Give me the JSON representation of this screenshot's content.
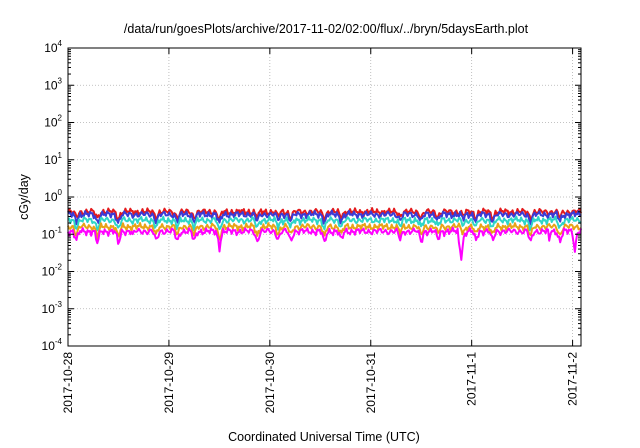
{
  "chart_data": {
    "type": "line",
    "title": "/data/run/goesPlots/archive/2017-11-02/02:00/flux/../bryn/5daysEarth.plot",
    "xlabel": "Coordinated Universal Time (UTC)",
    "ylabel": "cGy/day",
    "yscale": "log",
    "ylim": [
      0.0001,
      10000
    ],
    "y_ticks": [
      {
        "base": "10",
        "exp": "4"
      },
      {
        "base": "10",
        "exp": "3"
      },
      {
        "base": "10",
        "exp": "2"
      },
      {
        "base": "10",
        "exp": "1"
      },
      {
        "base": "10",
        "exp": "0"
      },
      {
        "base": "10",
        "exp": "-1"
      },
      {
        "base": "10",
        "exp": "-2"
      },
      {
        "base": "10",
        "exp": "-3"
      },
      {
        "base": "10",
        "exp": "-4"
      }
    ],
    "xlim": [
      "2017-10-28",
      "2017-11-02 02:00"
    ],
    "x_ticks": [
      "2017-10-28",
      "2017-10-29",
      "2017-10-30",
      "2017-10-31",
      "2017-11-1",
      "2017-11-2"
    ],
    "grid": true,
    "series": [
      {
        "color": "#e41a1c",
        "level": 0.4
      },
      {
        "color": "#3b3bd6",
        "level": 0.34
      },
      {
        "color": "#2ed6c8",
        "level": 0.24
      },
      {
        "color": "#e8a318",
        "level": 0.16
      },
      {
        "color": "#ff00ff",
        "level": 0.12
      }
    ],
    "dips": [
      {
        "date": "2017-10-28 02:00",
        "depth": 0.45
      },
      {
        "date": "2017-10-28 07:00",
        "depth": 0.55
      },
      {
        "date": "2017-10-28 12:00",
        "depth": 0.6
      },
      {
        "date": "2017-10-28 21:00",
        "depth": 0.5
      },
      {
        "date": "2017-10-29 02:00",
        "depth": 0.5
      },
      {
        "date": "2017-10-29 06:00",
        "depth": 0.5
      },
      {
        "date": "2017-10-29 12:00",
        "depth": 0.65
      },
      {
        "date": "2017-10-29 21:00",
        "depth": 0.5
      },
      {
        "date": "2017-10-30 02:00",
        "depth": 0.4
      },
      {
        "date": "2017-10-30 05:00",
        "depth": 0.5
      },
      {
        "date": "2017-10-30 13:00",
        "depth": 0.55
      },
      {
        "date": "2017-10-30 17:00",
        "depth": 0.45
      },
      {
        "date": "2017-10-31 07:00",
        "depth": 0.4
      },
      {
        "date": "2017-10-31 12:00",
        "depth": 0.5
      },
      {
        "date": "2017-10-31 16:00",
        "depth": 0.4
      },
      {
        "date": "2017-10-31 22:00",
        "depth": 0.35
      },
      {
        "date": "2017-11-01 01:00",
        "depth": 0.45
      },
      {
        "date": "2017-11-01 05:00",
        "depth": 0.5
      },
      {
        "date": "2017-11-01 14:00",
        "depth": 0.55
      },
      {
        "date": "2017-11-01 21:00",
        "depth": 0.5
      }
    ],
    "spikes": [
      {
        "date": "2017-10-31 21:30",
        "value": 0.018
      },
      {
        "date": "2017-11-02 00:30",
        "value": 0.028
      },
      {
        "date": "2017-11-01 18:30",
        "value": 0.055
      },
      {
        "date": "2017-10-28 15:30",
        "value": 0.07
      }
    ]
  }
}
